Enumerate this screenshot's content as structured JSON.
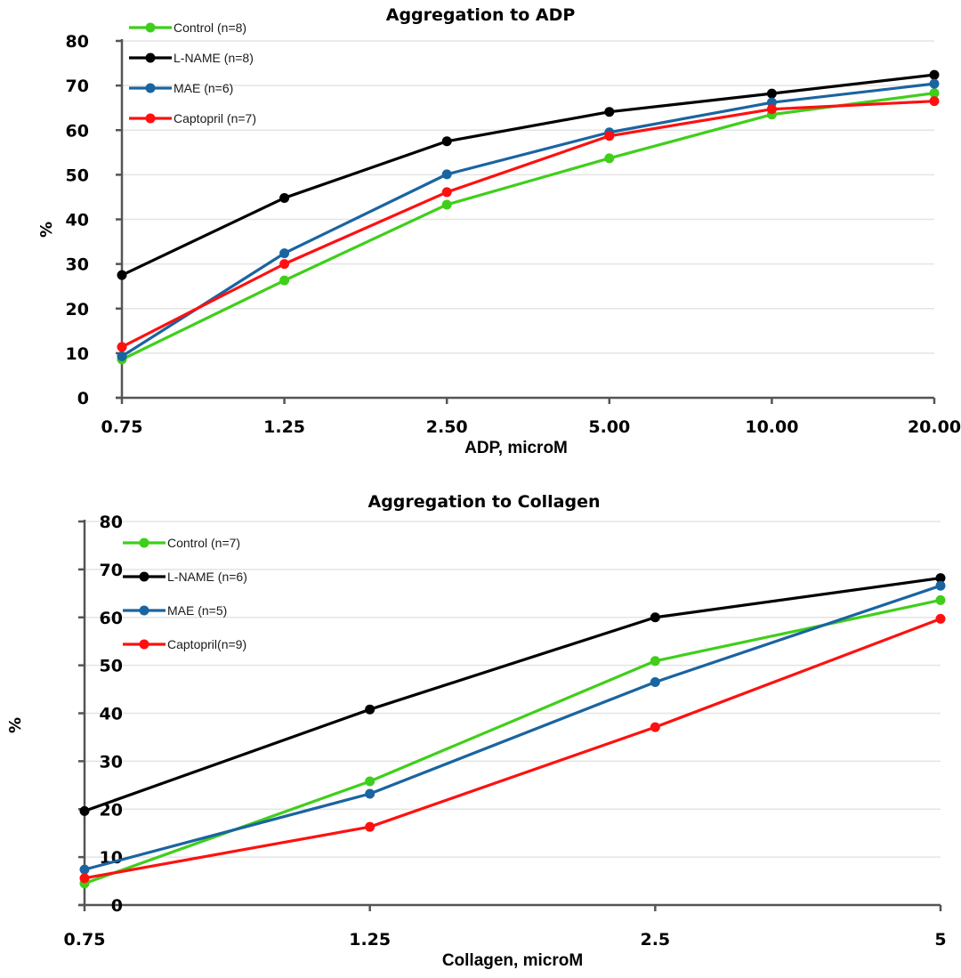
{
  "chart_data": [
    {
      "id": "adp",
      "type": "line",
      "title": "Aggregation to ADP",
      "xlabel": "ADP, microM",
      "ylabel": "%",
      "categories": [
        "0.75",
        "1.25",
        "2.50",
        "5.00",
        "10.00",
        "20.00"
      ],
      "ylim": [
        0,
        80
      ],
      "yticks": [
        0,
        10,
        20,
        30,
        40,
        50,
        60,
        70,
        80
      ],
      "grid": true,
      "legend_position": "top-left",
      "series": [
        {
          "name": "Control (n=8)",
          "color": "#3fcf1a",
          "values": [
            8.6,
            26.3,
            43.3,
            53.7,
            63.5,
            68.3
          ]
        },
        {
          "name": "L-NAME (n=8)",
          "color": "#000000",
          "values": [
            27.5,
            44.8,
            57.5,
            64.1,
            68.2,
            72.4
          ]
        },
        {
          "name": "MAE (n=6)",
          "color": "#1a64a0",
          "values": [
            9.3,
            32.4,
            50.1,
            59.5,
            66.2,
            70.4
          ]
        },
        {
          "name": "Captopril (n=7)",
          "color": "#ff1010",
          "values": [
            11.4,
            30.0,
            46.1,
            58.7,
            64.7,
            66.5
          ]
        }
      ]
    },
    {
      "id": "collagen",
      "type": "line",
      "title": "Aggregation to Collagen",
      "xlabel": "Collagen, microM",
      "ylabel": "%",
      "categories": [
        "0.75",
        "1.25",
        "2.5",
        "5"
      ],
      "ylim": [
        0,
        80
      ],
      "yticks": [
        0,
        10,
        20,
        30,
        40,
        50,
        60,
        70,
        80
      ],
      "grid": true,
      "legend_position": "top-left",
      "series": [
        {
          "name": "Control (n=7)",
          "color": "#3fcf1a",
          "values": [
            4.5,
            25.8,
            50.9,
            63.6
          ]
        },
        {
          "name": "L-NAME (n=6)",
          "color": "#000000",
          "values": [
            19.6,
            40.8,
            60.0,
            68.2
          ]
        },
        {
          "name": "MAE (n=5)",
          "color": "#1a64a0",
          "values": [
            7.4,
            23.2,
            46.5,
            66.6
          ]
        },
        {
          "name": "Captopril(n=9)",
          "color": "#ff1010",
          "values": [
            5.6,
            16.3,
            37.1,
            59.7
          ]
        }
      ]
    }
  ]
}
